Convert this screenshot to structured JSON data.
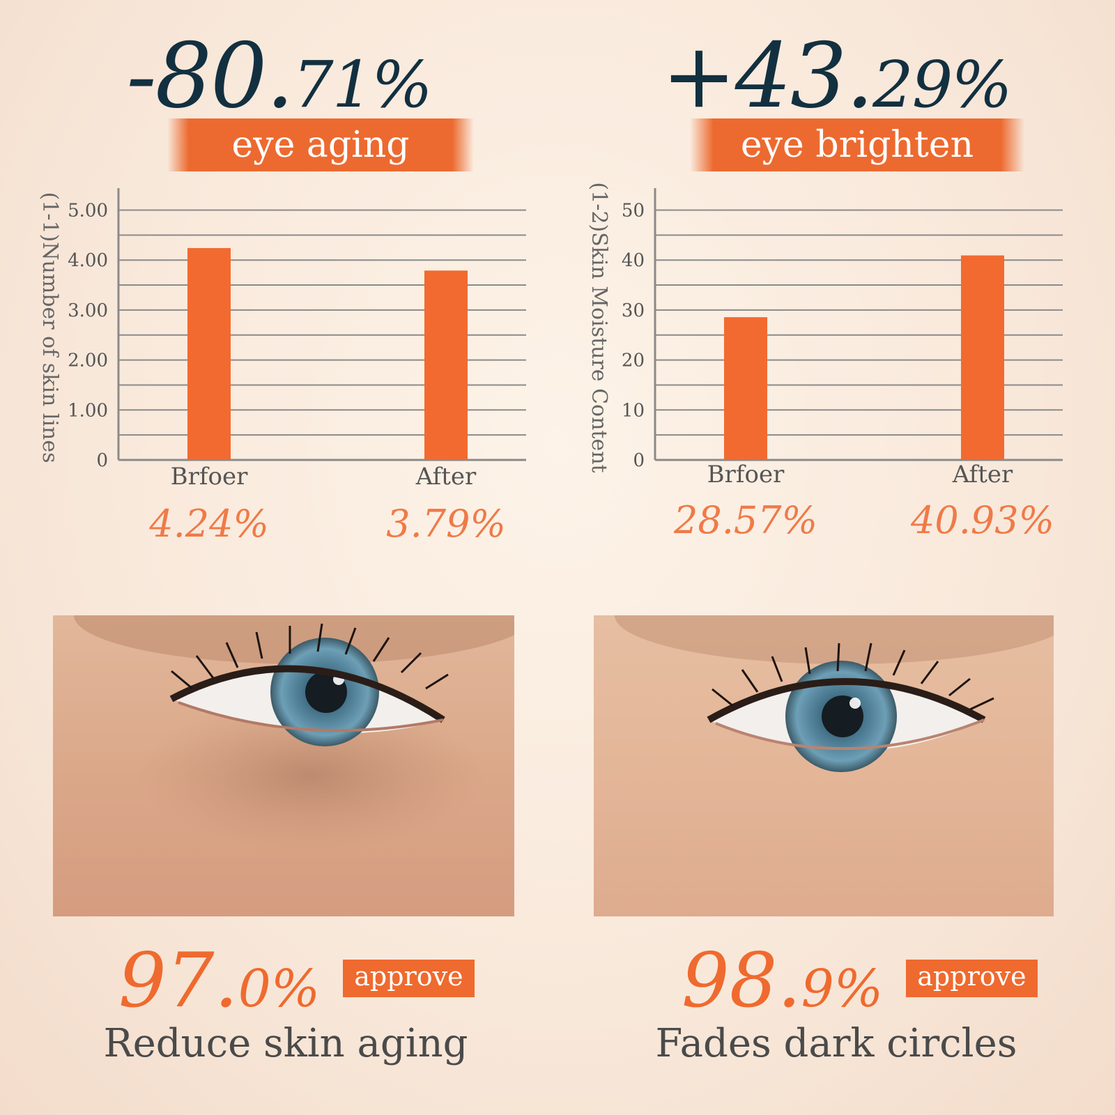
{
  "colors": {
    "accent": "#f26a30",
    "headline": "#123040",
    "value_text": "#ef7a48",
    "background": "#f8e8da"
  },
  "left": {
    "headline_int": "-80.",
    "headline_dec": "71%",
    "ribbon": "eye aging",
    "approve_int": "97.",
    "approve_dec": "0%",
    "approve_badge": "approve",
    "caption": "Reduce skin aging"
  },
  "right": {
    "headline_int": "+43.",
    "headline_dec": "29%",
    "ribbon": "eye brighten",
    "approve_int": "98.",
    "approve_dec": "9%",
    "approve_badge": "approve",
    "caption": "Fades dark circles"
  },
  "chart_data": [
    {
      "type": "bar",
      "ylabel": "(1-1)Number of skin lines",
      "categories": [
        "Brfoer",
        "After"
      ],
      "values": [
        4.24,
        3.79
      ],
      "value_labels": [
        "4.24%",
        "3.79%"
      ],
      "yticks": [
        0,
        1,
        2,
        3,
        4,
        5
      ],
      "ytick_labels": [
        "0",
        "1.00",
        "2.00",
        "3.00",
        "4.00",
        "5.00"
      ],
      "ylim": [
        0,
        5.3
      ],
      "grid": true,
      "grid_step": 0.5
    },
    {
      "type": "bar",
      "ylabel": "(1-2)Skin Moisture Content",
      "categories": [
        "Brfoer",
        "After"
      ],
      "values": [
        28.57,
        40.93
      ],
      "value_labels": [
        "28.57%",
        "40.93%"
      ],
      "yticks": [
        0,
        10,
        20,
        30,
        40,
        50
      ],
      "ytick_labels": [
        "0",
        "10",
        "20",
        "30",
        "40",
        "50"
      ],
      "ylim": [
        0,
        53
      ],
      "grid": true,
      "grid_step": 5
    }
  ]
}
